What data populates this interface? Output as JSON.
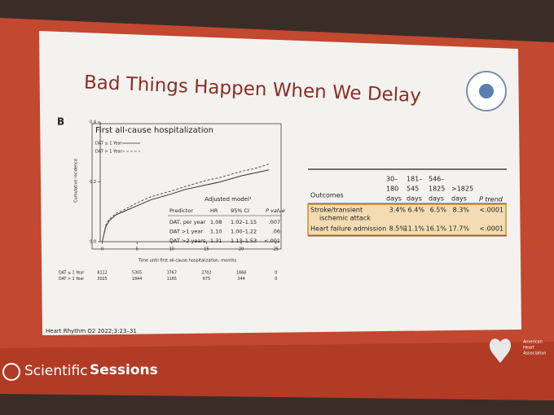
{
  "slide": {
    "title": "Bad Things Happen When We Delay",
    "panel_label": "B",
    "citation": "Heart Rhythm O2 2022;3:23–31",
    "brand_light": "Scientific",
    "brand_bold": "Sessions",
    "logo_text": [
      "American",
      "Heart",
      "Association"
    ]
  },
  "chart_data": {
    "type": "line",
    "title": "First all-cause hospitalization",
    "x_label": "Time until first all-cause hospitalization, months",
    "y_label": "Cumulative incidence",
    "xlim": [
      -1,
      25.5
    ],
    "ylim": [
      0,
      0.4
    ],
    "xticks": [
      0,
      5,
      10,
      15,
      20,
      25
    ],
    "yticks": [
      {
        "value": 0,
        "label": "0.0"
      },
      0.2,
      0.4
    ],
    "x": [
      0,
      0.5,
      1,
      2,
      3,
      5,
      7,
      10,
      12,
      15,
      17,
      20,
      22,
      24
    ],
    "series": [
      {
        "name": "DAT ≤ 1 Year",
        "color": "#333333",
        "style": "solid",
        "values": [
          0,
          0.05,
          0.07,
          0.09,
          0.1,
          0.12,
          0.14,
          0.16,
          0.175,
          0.19,
          0.2,
          0.22,
          0.23,
          0.24
        ]
      },
      {
        "name": "DAT > 1 Year",
        "color": "#555555",
        "style": "dashed",
        "values": [
          0,
          0.055,
          0.075,
          0.095,
          0.105,
          0.13,
          0.15,
          0.17,
          0.185,
          0.205,
          0.215,
          0.235,
          0.245,
          0.26
        ]
      }
    ],
    "inset": {
      "caption": "Adjusted model¹",
      "header": [
        "Predictor",
        "HR",
        "95% CI",
        "P value"
      ],
      "rows": [
        [
          "DAT, per year",
          "1.08",
          "1.02–1.15",
          ".007"
        ],
        [
          "DAT >1 year",
          "1.10",
          "1.00–1.22",
          ".06"
        ],
        [
          "DAT >2 years",
          "1.31",
          "1.13–1.53",
          "<.001"
        ]
      ]
    },
    "risk_table": [
      {
        "label": "DAT ≤ 1 Year",
        "values": [
          8112,
          5305,
          3767,
          2702,
          1868,
          0
        ]
      },
      {
        "label": "DAT > 1 Year",
        "values": [
          3025,
          1844,
          1165,
          675,
          344,
          0
        ]
      }
    ]
  },
  "table": {
    "header": [
      [
        "Outcomes"
      ],
      [
        "30–",
        "180",
        "days"
      ],
      [
        "181–",
        "545",
        "days"
      ],
      [
        "546–",
        "1825",
        "days"
      ],
      [
        ">1825",
        "days"
      ],
      [
        "P trend"
      ]
    ],
    "rows": [
      [
        [
          "Stroke/transient",
          "ischemic attack"
        ],
        "3.4%",
        "6.4%",
        "6.5%",
        "8.3%",
        "<.0001"
      ],
      [
        [
          "Heart failure admission"
        ],
        "8.5%",
        "11.1%",
        "16.1%",
        "17.7%",
        "<.0001"
      ]
    ]
  }
}
